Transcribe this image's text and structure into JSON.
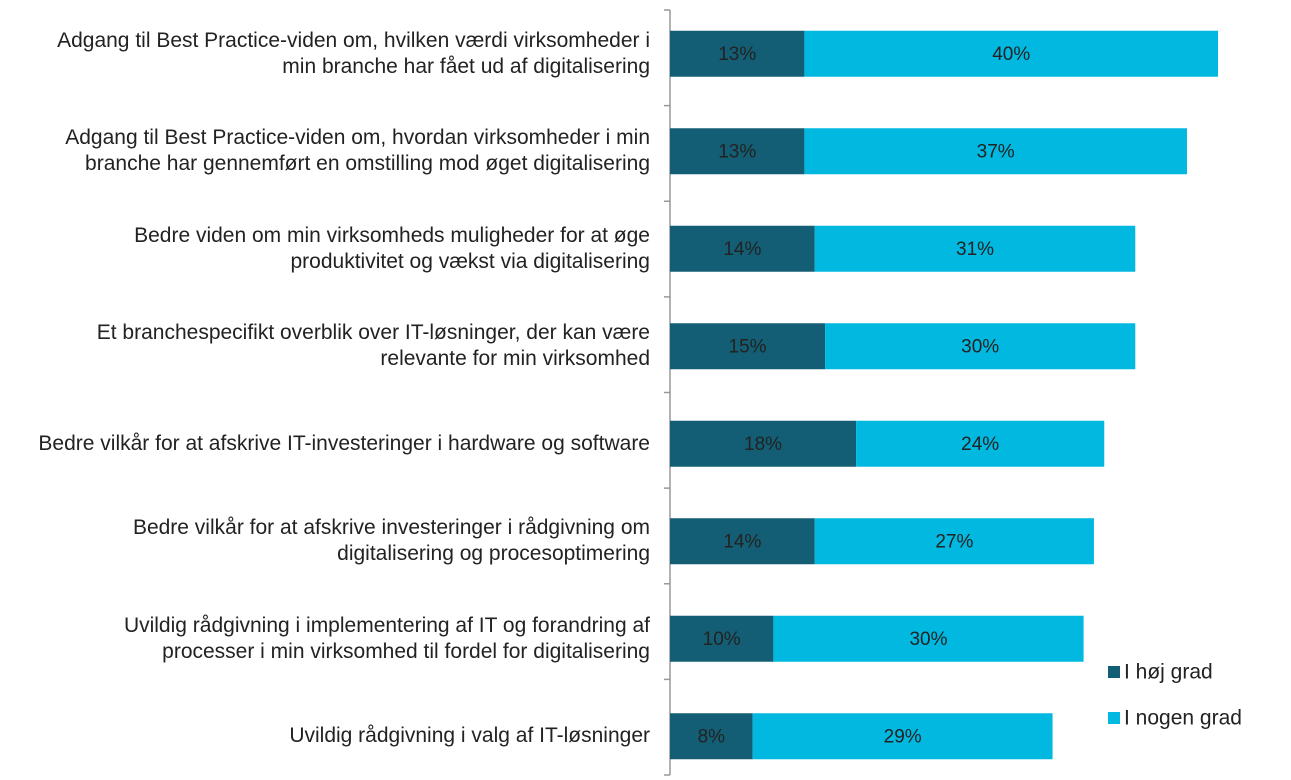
{
  "chart_data": {
    "type": "stacked-bar-horizontal",
    "categories": [
      "Adgang til Best Practice-viden om, hvilken værdi virksomheder i min branche har fået ud af digitalisering",
      "Adgang til Best Practice-viden om, hvordan virksomheder i min branche har gennemført en omstilling mod øget digitalisering",
      "Bedre viden om min virksomheds muligheder for at øge produktivitet og vækst via digitalisering",
      "Et branchespecifikt overblik over IT-løsninger, der kan være relevante for min virksomhed",
      "Bedre vilkår for at afskrive IT-investeringer i hardware og software",
      "Bedre vilkår for at afskrive investeringer i rådgivning om digitalisering og procesoptimering",
      "Uvildig rådgivning i implementering af IT og forandring af processer i min virksomhed til fordel for digitalisering",
      "Uvildig rådgivning i valg af IT-løsninger"
    ],
    "series": [
      {
        "name": "I høj grad",
        "color": "#135e74",
        "values": [
          13,
          13,
          14,
          15,
          18,
          14,
          10,
          8
        ],
        "value_labels": [
          "13%",
          "13%",
          "14%",
          "15%",
          "18%",
          "14%",
          "10%",
          "8%"
        ]
      },
      {
        "name": "I nogen grad",
        "color": "#00b8e0",
        "values": [
          40,
          37,
          31,
          30,
          24,
          27,
          30,
          29
        ],
        "value_labels": [
          "40%",
          "37%",
          "31%",
          "30%",
          "24%",
          "27%",
          "30%",
          "29%"
        ]
      }
    ],
    "legend": "lower-right"
  }
}
